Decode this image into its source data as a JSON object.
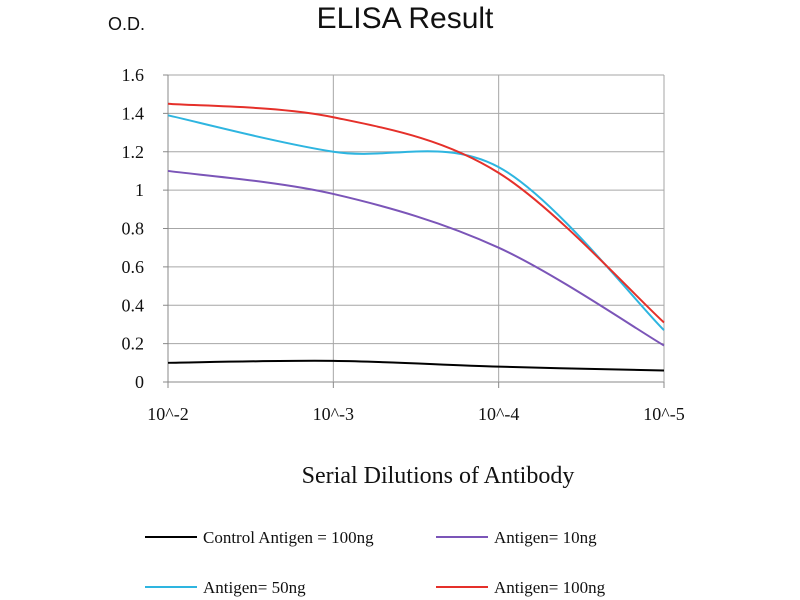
{
  "chart_data": {
    "type": "line",
    "title": "ELISA Result",
    "ylabel": "O.D.",
    "xlabel": "Serial Dilutions of Antibody",
    "categories": [
      "10^-2",
      "10^-3",
      "10^-4",
      "10^-5"
    ],
    "ylim": [
      0,
      1.6
    ],
    "yticks": [
      "0",
      "0.2",
      "0.4",
      "0.6",
      "0.8",
      "1",
      "1.2",
      "1.4",
      "1.6"
    ],
    "grid": true,
    "legend_position": "bottom",
    "series": [
      {
        "name": "Control Antigen = 100ng",
        "color": "#000000",
        "values": [
          0.1,
          0.11,
          0.08,
          0.06
        ]
      },
      {
        "name": "Antigen= 10ng",
        "color": "#7b55b8",
        "values": [
          1.1,
          0.98,
          0.7,
          0.19
        ]
      },
      {
        "name": "Antigen= 50ng",
        "color": "#2eb5e0",
        "values": [
          1.39,
          1.2,
          1.12,
          0.27
        ]
      },
      {
        "name": "Antigen= 100ng",
        "color": "#e5302a",
        "values": [
          1.45,
          1.38,
          1.09,
          0.31
        ]
      }
    ]
  }
}
